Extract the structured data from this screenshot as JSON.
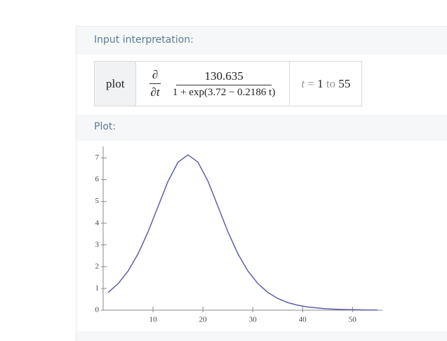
{
  "input_pod": {
    "title": "Input interpretation:",
    "label": "plot",
    "operator_top": "∂",
    "operator_bottom": "∂t",
    "numerator": "130.635",
    "denominator": "1 + exp(3.72 − 0.2186 t)",
    "range": {
      "variable": "t",
      "equals": "=",
      "start": "1",
      "to": "to",
      "end": "55"
    }
  },
  "plot_pod": {
    "title": "Plot:"
  },
  "chart_data": {
    "type": "line",
    "color": "#5e5fa8",
    "x": [
      1,
      3,
      5,
      7,
      9,
      11,
      13,
      15,
      17,
      19,
      21,
      23,
      25,
      27,
      29,
      31,
      33,
      35,
      37,
      39,
      41,
      43,
      45,
      47,
      49,
      51,
      53,
      55
    ],
    "values": [
      0.81,
      1.22,
      1.8,
      2.59,
      3.6,
      4.76,
      5.92,
      6.8,
      7.14,
      6.81,
      5.94,
      4.78,
      3.61,
      2.6,
      1.81,
      1.23,
      0.82,
      0.54,
      0.35,
      0.23,
      0.15,
      0.1,
      0.06,
      0.04,
      0.03,
      0.02,
      0.01,
      0.01
    ],
    "xlim": [
      0,
      56
    ],
    "ylim": [
      0,
      7.5
    ],
    "xticks": [
      10,
      20,
      30,
      40,
      50
    ],
    "yticks": [
      0,
      1,
      2,
      3,
      4,
      5,
      6,
      7
    ]
  }
}
